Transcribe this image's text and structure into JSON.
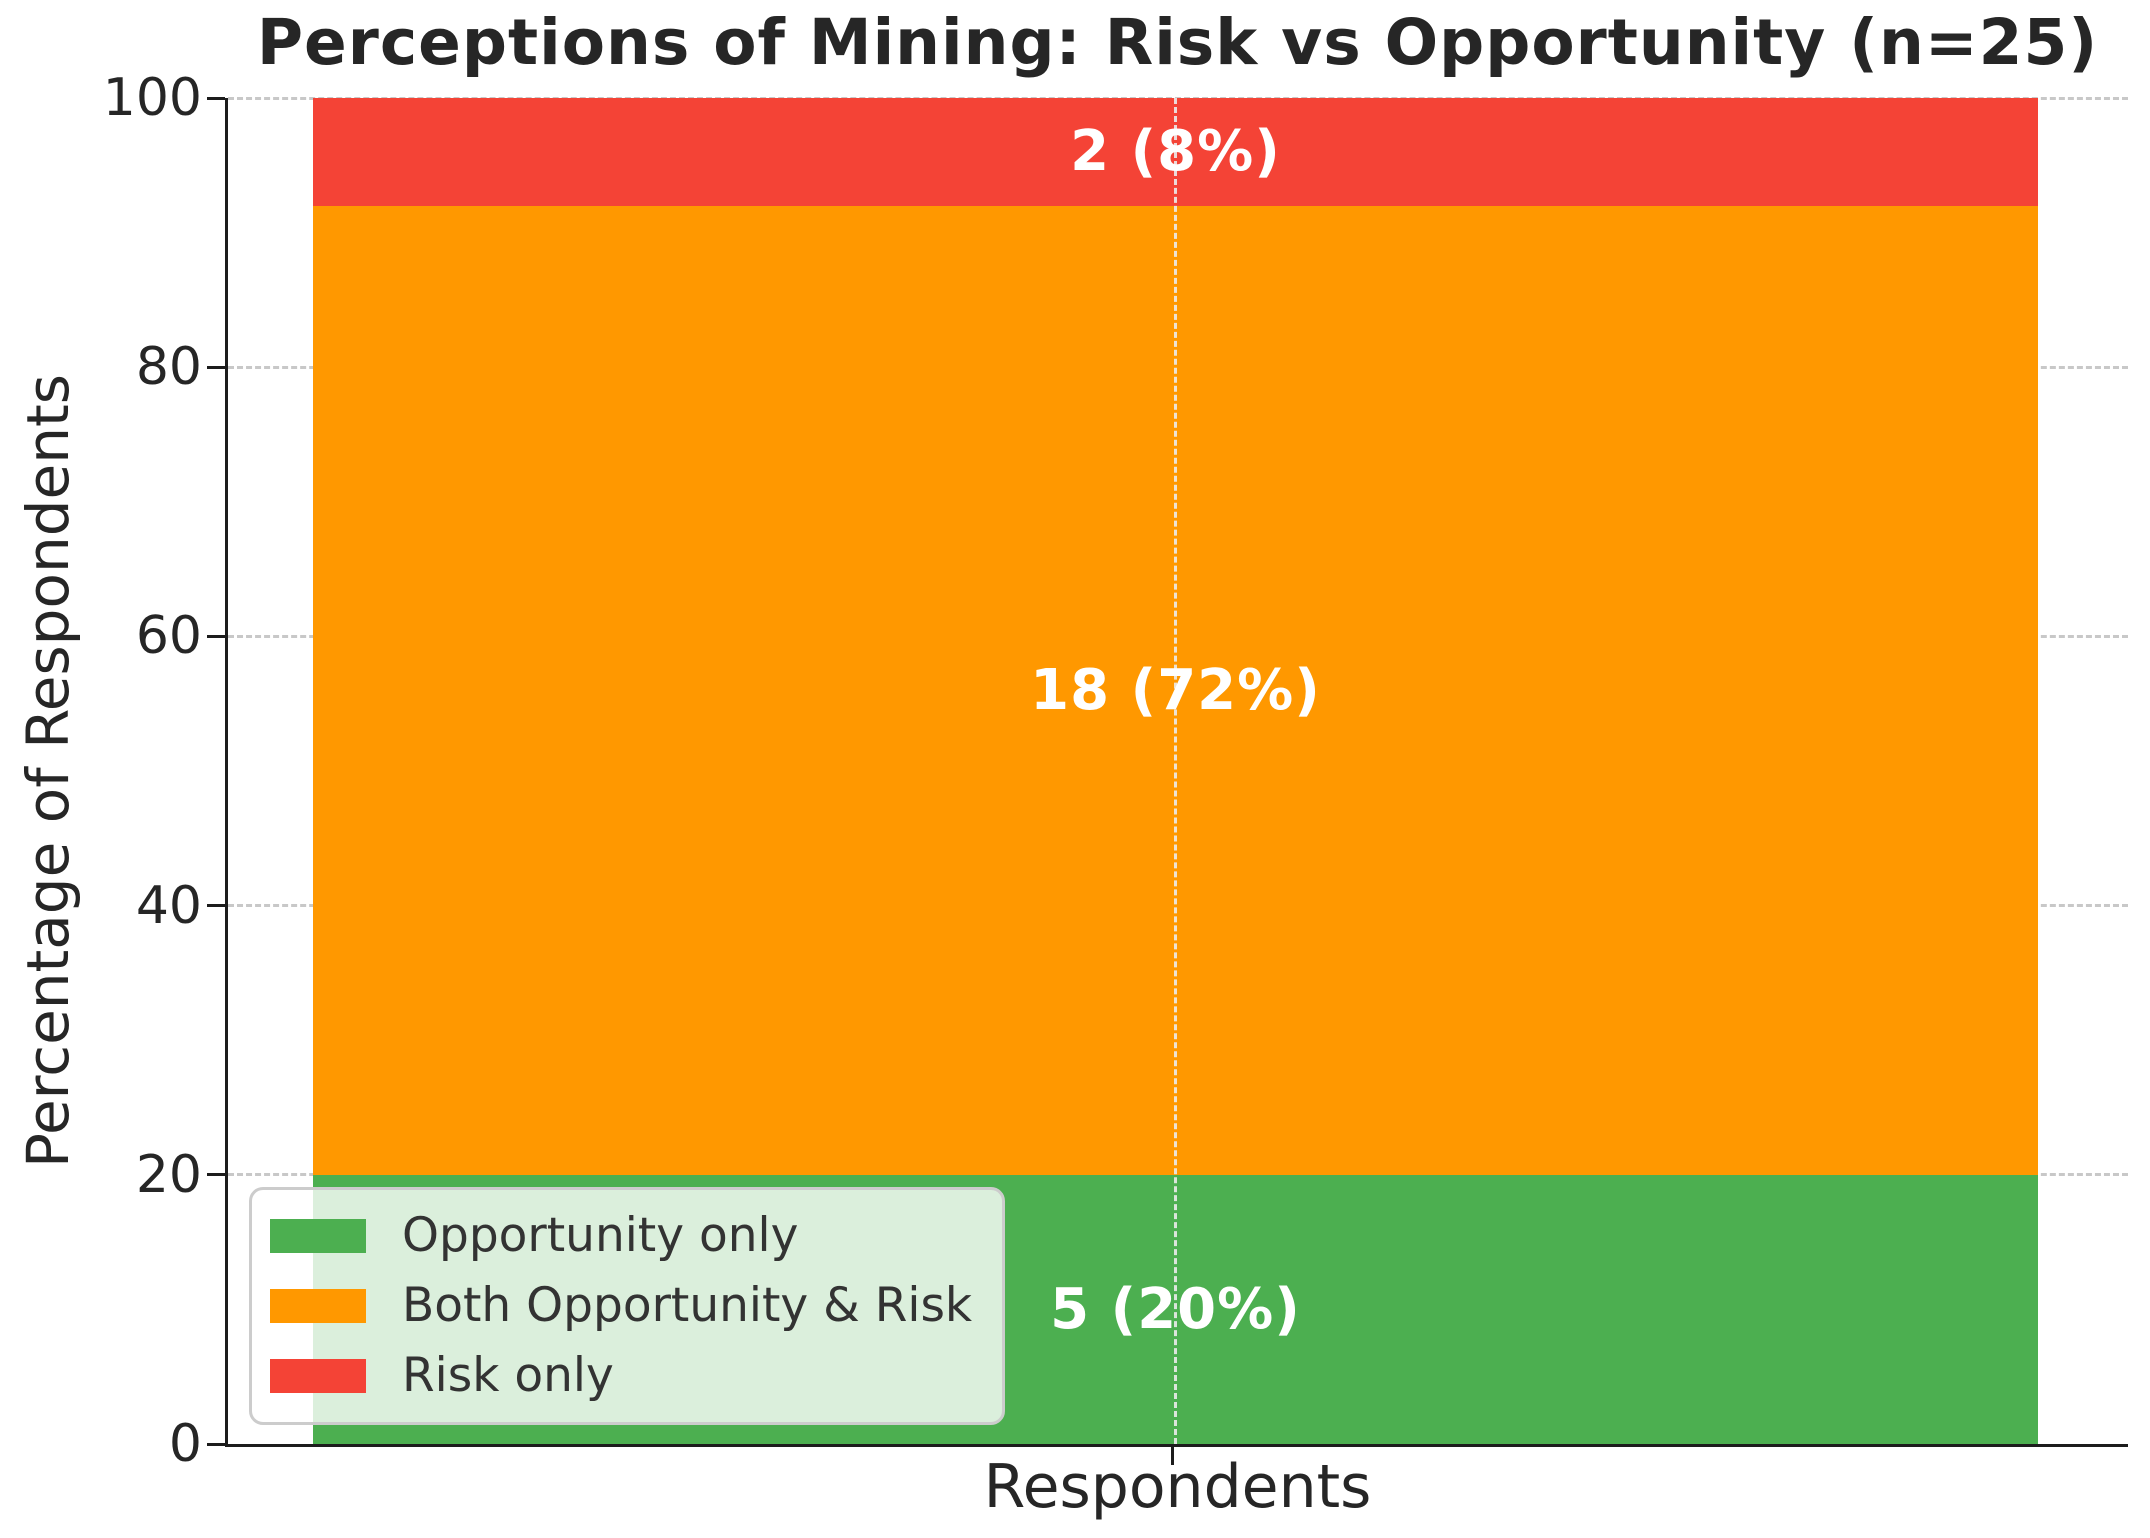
{
  "chart_data": {
    "type": "bar",
    "stacked": true,
    "title": "Perceptions of Mining: Risk vs Opportunity (n=25)",
    "xlabel": "Respondents",
    "ylabel": "Percentage of Respondents",
    "categories": [
      "Respondents"
    ],
    "n_total": 25,
    "ylim": [
      0,
      100
    ],
    "yticks": [
      0,
      20,
      40,
      60,
      80,
      100
    ],
    "grid": true,
    "grid_style": "dashed",
    "series": [
      {
        "name": "Opportunity only",
        "count": 5,
        "percent": 20,
        "bar_label": "5 (20%)",
        "color": "#4caf50"
      },
      {
        "name": "Both Opportunity & Risk",
        "count": 18,
        "percent": 72,
        "bar_label": "18 (72%)",
        "color": "#ff9800"
      },
      {
        "name": "Risk only",
        "count": 2,
        "percent": 8,
        "bar_label": "2 (8%)",
        "color": "#f44336"
      }
    ],
    "legend": {
      "position": "lower left",
      "entries": [
        "Opportunity only",
        "Both Opportunity & Risk",
        "Risk only"
      ]
    },
    "bar_label_color": "#ffffff"
  }
}
